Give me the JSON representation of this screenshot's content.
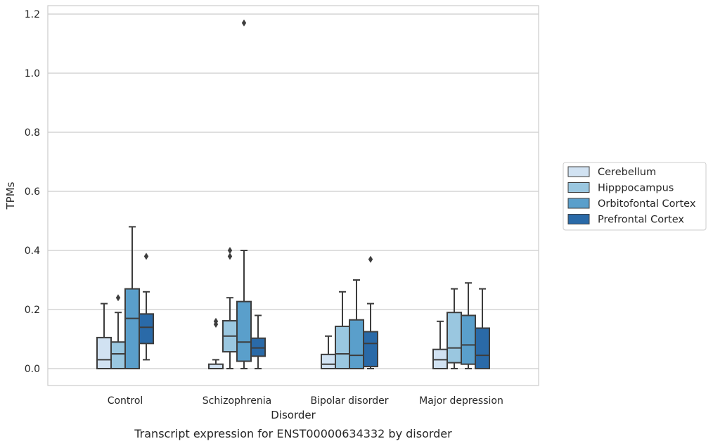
{
  "chart_data": {
    "type": "box",
    "title": "",
    "caption": "Transcript expression for ENST00000634332 by disorder",
    "xlabel": "Disorder",
    "ylabel": "TPMs",
    "ylim": [
      -0.055,
      1.235
    ],
    "yticks": [
      0.0,
      0.2,
      0.4,
      0.6,
      0.8,
      1.0,
      1.2
    ],
    "ytick_labels": [
      "0.0",
      "0.2",
      "0.4",
      "0.6",
      "0.8",
      "1.0",
      "1.2"
    ],
    "grid": "horizontal",
    "legend_position": "right",
    "categories": [
      "Control",
      "Schizophrenia",
      "Bipolar disorder",
      "Major depression"
    ],
    "series": [
      {
        "name": "Cerebellum",
        "color": "#d1e2f2",
        "boxes": [
          {
            "whisker_low": 0.0,
            "q1": 0.0,
            "median": 0.03,
            "q3": 0.105,
            "whisker_high": 0.22,
            "outliers": []
          },
          {
            "whisker_low": 0.0,
            "q1": 0.0,
            "median": 0.0,
            "q3": 0.015,
            "whisker_high": 0.03,
            "outliers": [
              0.15,
              0.16
            ]
          },
          {
            "whisker_low": 0.0,
            "q1": 0.0,
            "median": 0.015,
            "q3": 0.048,
            "whisker_high": 0.11,
            "outliers": []
          },
          {
            "whisker_low": 0.0,
            "q1": 0.0,
            "median": 0.03,
            "q3": 0.065,
            "whisker_high": 0.16,
            "outliers": []
          }
        ]
      },
      {
        "name": "Hipppocampus",
        "color": "#9ac7e0",
        "boxes": [
          {
            "whisker_low": 0.0,
            "q1": 0.0,
            "median": 0.05,
            "q3": 0.09,
            "whisker_high": 0.19,
            "outliers": [
              0.24
            ]
          },
          {
            "whisker_low": 0.0,
            "q1": 0.057,
            "median": 0.11,
            "q3": 0.162,
            "whisker_high": 0.24,
            "outliers": [
              0.38,
              0.4
            ]
          },
          {
            "whisker_low": 0.0,
            "q1": 0.0,
            "median": 0.05,
            "q3": 0.143,
            "whisker_high": 0.26,
            "outliers": []
          },
          {
            "whisker_low": 0.0,
            "q1": 0.02,
            "median": 0.07,
            "q3": 0.19,
            "whisker_high": 0.27,
            "outliers": []
          }
        ]
      },
      {
        "name": "Orbitofontal Cortex",
        "color": "#5a9fcb",
        "boxes": [
          {
            "whisker_low": 0.0,
            "q1": 0.0,
            "median": 0.17,
            "q3": 0.27,
            "whisker_high": 0.48,
            "outliers": []
          },
          {
            "whisker_low": 0.0,
            "q1": 0.025,
            "median": 0.09,
            "q3": 0.227,
            "whisker_high": 0.4,
            "outliers": [
              1.17
            ]
          },
          {
            "whisker_low": 0.0,
            "q1": 0.0,
            "median": 0.045,
            "q3": 0.165,
            "whisker_high": 0.3,
            "outliers": []
          },
          {
            "whisker_low": 0.0,
            "q1": 0.015,
            "median": 0.08,
            "q3": 0.18,
            "whisker_high": 0.29,
            "outliers": []
          }
        ]
      },
      {
        "name": "Prefrontal Cortex",
        "color": "#2a6aa8",
        "boxes": [
          {
            "whisker_low": 0.03,
            "q1": 0.085,
            "median": 0.14,
            "q3": 0.185,
            "whisker_high": 0.26,
            "outliers": [
              0.38
            ]
          },
          {
            "whisker_low": 0.0,
            "q1": 0.042,
            "median": 0.07,
            "q3": 0.103,
            "whisker_high": 0.18,
            "outliers": []
          },
          {
            "whisker_low": 0.0,
            "q1": 0.007,
            "median": 0.085,
            "q3": 0.125,
            "whisker_high": 0.22,
            "outliers": [
              0.37
            ]
          },
          {
            "whisker_low": 0.0,
            "q1": 0.0,
            "median": 0.045,
            "q3": 0.137,
            "whisker_high": 0.27,
            "outliers": []
          }
        ]
      }
    ]
  }
}
